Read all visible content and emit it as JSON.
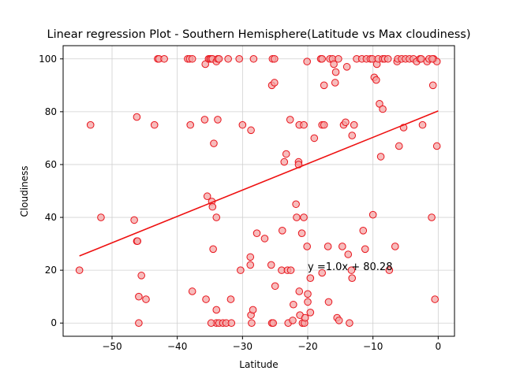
{
  "chart_data": {
    "type": "scatter",
    "title": "Linear regression Plot - Southern Hemisphere(Latitude vs Max cloudiness)",
    "xlabel": "Latitude",
    "ylabel": "Cloudiness",
    "xlim": [
      -57.5,
      2.5
    ],
    "ylim": [
      -5,
      105
    ],
    "xticks": [
      -50,
      -40,
      -30,
      -20,
      -10,
      0
    ],
    "yticks": [
      0,
      20,
      40,
      60,
      80,
      100
    ],
    "xtick_labels": [
      "−50",
      "−40",
      "−30",
      "−20",
      "−10",
      "0"
    ],
    "ytick_labels": [
      "0",
      "20",
      "40",
      "60",
      "80",
      "100"
    ],
    "grid": true,
    "marker_face": "#f4a6a6",
    "marker_edge": "#e8141c",
    "line_color": "#ee1111",
    "regression": {
      "x": [
        -55,
        0
      ],
      "y": [
        25.4,
        80.28
      ],
      "equation": "y =1.0x + 80.28",
      "label_position": [
        -20.0,
        20.0
      ]
    },
    "points": [
      [
        -55,
        20
      ],
      [
        -53.3,
        75
      ],
      [
        -51.7,
        40
      ],
      [
        -46.6,
        39
      ],
      [
        -46.2,
        31
      ],
      [
        -46.1,
        31
      ],
      [
        -46.2,
        78
      ],
      [
        -45.9,
        10
      ],
      [
        -45.9,
        0
      ],
      [
        -45.5,
        18
      ],
      [
        -44.8,
        9
      ],
      [
        -43.5,
        75
      ],
      [
        -43,
        100
      ],
      [
        -42.8,
        100
      ],
      [
        -42,
        100
      ],
      [
        -38.4,
        100
      ],
      [
        -38.1,
        100
      ],
      [
        -37.7,
        100
      ],
      [
        -38,
        75
      ],
      [
        -37.7,
        12
      ],
      [
        -35.8,
        77
      ],
      [
        -35.7,
        98
      ],
      [
        -35.6,
        9
      ],
      [
        -35.4,
        48
      ],
      [
        -35.2,
        100
      ],
      [
        -35,
        100
      ],
      [
        -34.8,
        100
      ],
      [
        -34.6,
        100
      ],
      [
        -34.7,
        46
      ],
      [
        -34.6,
        44
      ],
      [
        -34.5,
        28
      ],
      [
        -34.4,
        68
      ],
      [
        -34,
        40
      ],
      [
        -34,
        5
      ],
      [
        -34,
        0
      ],
      [
        -33.8,
        77
      ],
      [
        -33.6,
        0
      ],
      [
        -34.8,
        0
      ],
      [
        -34,
        99
      ],
      [
        -33.8,
        100
      ],
      [
        -33.6,
        100
      ],
      [
        -33,
        0
      ],
      [
        -32.5,
        0
      ],
      [
        -32.2,
        100
      ],
      [
        -31.8,
        9
      ],
      [
        -31.7,
        0
      ],
      [
        -30.5,
        100
      ],
      [
        -30.3,
        20
      ],
      [
        -30,
        75
      ],
      [
        -28.8,
        22
      ],
      [
        -28.8,
        25
      ],
      [
        -28.7,
        3
      ],
      [
        -28.6,
        0
      ],
      [
        -28.7,
        73
      ],
      [
        -28.4,
        5
      ],
      [
        -28.3,
        100
      ],
      [
        -27.8,
        34
      ],
      [
        -26.6,
        32
      ],
      [
        -25.6,
        22
      ],
      [
        -25.5,
        0
      ],
      [
        -25.3,
        0
      ],
      [
        -25.5,
        90
      ],
      [
        -25.1,
        91
      ],
      [
        -25.4,
        100
      ],
      [
        -25.1,
        100
      ],
      [
        -25,
        14
      ],
      [
        -24,
        20
      ],
      [
        -23.9,
        35
      ],
      [
        -23.6,
        61
      ],
      [
        -23.3,
        64
      ],
      [
        -23.1,
        20
      ],
      [
        -23,
        0
      ],
      [
        -22.7,
        77
      ],
      [
        -22.6,
        20
      ],
      [
        -22.3,
        1
      ],
      [
        -22.2,
        7
      ],
      [
        -21.8,
        45
      ],
      [
        -21.7,
        40
      ],
      [
        -21.4,
        61
      ],
      [
        -21.4,
        60
      ],
      [
        -21.3,
        12
      ],
      [
        -21.2,
        3
      ],
      [
        -21.3,
        75
      ],
      [
        -20.9,
        34
      ],
      [
        -20.6,
        75
      ],
      [
        -20.6,
        40
      ],
      [
        -20.8,
        0
      ],
      [
        -20.5,
        0
      ],
      [
        -20.4,
        2
      ],
      [
        -20.1,
        29
      ],
      [
        -20,
        11
      ],
      [
        -20,
        8
      ],
      [
        -20.1,
        99
      ],
      [
        -19.6,
        4
      ],
      [
        -19.6,
        17
      ],
      [
        -19,
        70
      ],
      [
        -18,
        100
      ],
      [
        -17.8,
        100
      ],
      [
        -17.8,
        19
      ],
      [
        -17.8,
        75
      ],
      [
        -17.5,
        75
      ],
      [
        -17.5,
        90
      ],
      [
        -16.9,
        29
      ],
      [
        -16.8,
        8
      ],
      [
        -16.6,
        100
      ],
      [
        -16.2,
        100
      ],
      [
        -15.8,
        91
      ],
      [
        -16,
        98
      ],
      [
        -15.7,
        95
      ],
      [
        -15.5,
        2
      ],
      [
        -15.2,
        1
      ],
      [
        -15.3,
        100
      ],
      [
        -14.7,
        29
      ],
      [
        -14.5,
        75
      ],
      [
        -14.2,
        76
      ],
      [
        -14,
        97
      ],
      [
        -13.8,
        26
      ],
      [
        -13.6,
        0
      ],
      [
        -13.3,
        20
      ],
      [
        -13.2,
        17
      ],
      [
        -13.2,
        71
      ],
      [
        -12.9,
        75
      ],
      [
        -12.5,
        100
      ],
      [
        -11.7,
        100
      ],
      [
        -11.5,
        35
      ],
      [
        -11.2,
        28
      ],
      [
        -11,
        100
      ],
      [
        -10.4,
        100
      ],
      [
        -10,
        41
      ],
      [
        -10.1,
        100
      ],
      [
        -9.8,
        93
      ],
      [
        -9.5,
        92
      ],
      [
        -9.4,
        98
      ],
      [
        -9.2,
        100
      ],
      [
        -9,
        83
      ],
      [
        -8.8,
        63
      ],
      [
        -8.5,
        100
      ],
      [
        -8.5,
        81
      ],
      [
        -8.2,
        100
      ],
      [
        -7.7,
        100
      ],
      [
        -7.5,
        20
      ],
      [
        -6.6,
        29
      ],
      [
        -6.3,
        99
      ],
      [
        -6.2,
        100
      ],
      [
        -6,
        67
      ],
      [
        -5.6,
        100
      ],
      [
        -5.3,
        74
      ],
      [
        -5,
        100
      ],
      [
        -4.4,
        100
      ],
      [
        -3.8,
        100
      ],
      [
        -3.3,
        99
      ],
      [
        -2.8,
        100
      ],
      [
        -2.6,
        100
      ],
      [
        -2.4,
        75
      ],
      [
        -1.7,
        99
      ],
      [
        -1.4,
        100
      ],
      [
        -1,
        40
      ],
      [
        -0.8,
        90
      ],
      [
        -0.7,
        100
      ],
      [
        -0.5,
        9
      ],
      [
        -0.2,
        99
      ],
      [
        -0.2,
        67
      ],
      [
        -0.9,
        100
      ]
    ]
  }
}
